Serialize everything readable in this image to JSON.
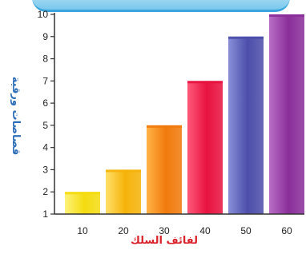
{
  "banner_color": "#7cc9ec",
  "chart_data": {
    "type": "bar",
    "title": "",
    "xlabel": "لفائف السلك",
    "ylabel": "قصاصات ورقية",
    "categories": [
      "10",
      "20",
      "30",
      "40",
      "50",
      "60"
    ],
    "series": [
      {
        "values": [
          2,
          3,
          5,
          7,
          9,
          10
        ]
      }
    ],
    "ylim": [
      1,
      10
    ],
    "yticks": [
      "1",
      "2",
      "3",
      "4",
      "5",
      "6",
      "7",
      "8",
      "9",
      "10"
    ],
    "grid": false,
    "legend": "none",
    "bar_colors": [
      [
        "#fff27a",
        "#f4dc10"
      ],
      [
        "#ffe06a",
        "#f5b30a"
      ],
      [
        "#ffb347",
        "#f17a0c"
      ],
      [
        "#ff5a7a",
        "#e8123f"
      ],
      [
        "#8a8fd8",
        "#4c4eaa"
      ],
      [
        "#b96ec6",
        "#8a2e9a"
      ]
    ],
    "axis_title_color": "#d9222a",
    "ylabel_color": "#2f6fb7"
  }
}
